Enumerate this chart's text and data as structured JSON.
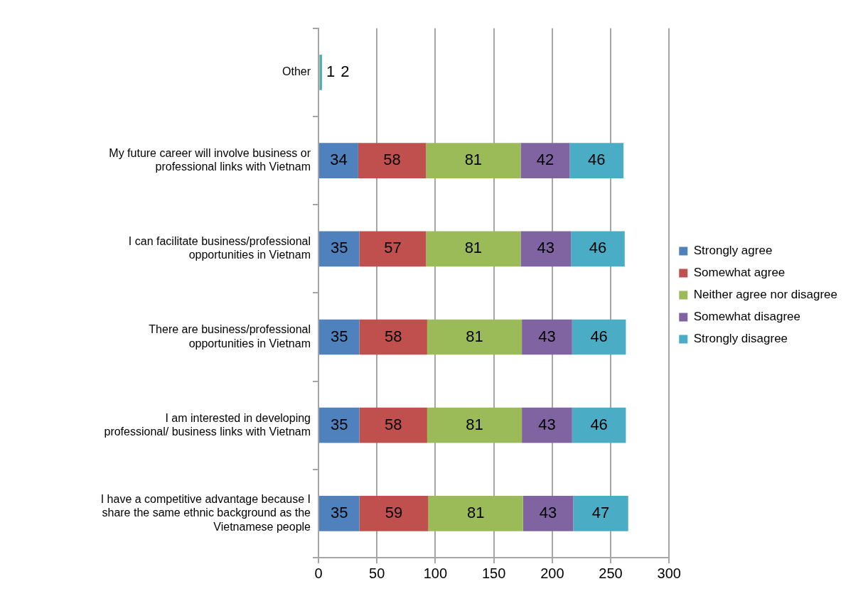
{
  "chart_data": {
    "type": "bar",
    "orientation": "horizontal",
    "stacked": true,
    "data_labels": true,
    "grid": "x",
    "legend": "right",
    "categories": [
      "Other",
      "My future career will involve business or professional links with Vietnam",
      "I can facilitate business/professional opportunities in Vietnam",
      "There are business/professional opportunities in Vietnam",
      "I am interested in developing professional/ business links with Vietnam",
      "I have a competitive advantage because I share the same ethnic background as the Vietnamese people"
    ],
    "xlim": [
      0,
      300
    ],
    "xticks": [
      0,
      50,
      100,
      150,
      200,
      250,
      300
    ],
    "series": [
      {
        "name": "Strongly agree",
        "color": "#4f81bd",
        "values": [
          null,
          34,
          35,
          35,
          35,
          35
        ]
      },
      {
        "name": "Somewhat agree",
        "color": "#c0504d",
        "values": [
          null,
          58,
          57,
          58,
          58,
          59
        ]
      },
      {
        "name": "Neither agree nor disagree",
        "color": "#9bbb59",
        "values": [
          1,
          81,
          81,
          81,
          81,
          81
        ]
      },
      {
        "name": "Somewhat disagree",
        "color": "#8064a2",
        "values": [
          null,
          42,
          43,
          43,
          43,
          43
        ]
      },
      {
        "name": "Strongly disagree",
        "color": "#4bacc6",
        "values": [
          2,
          46,
          46,
          46,
          46,
          47
        ]
      }
    ]
  }
}
